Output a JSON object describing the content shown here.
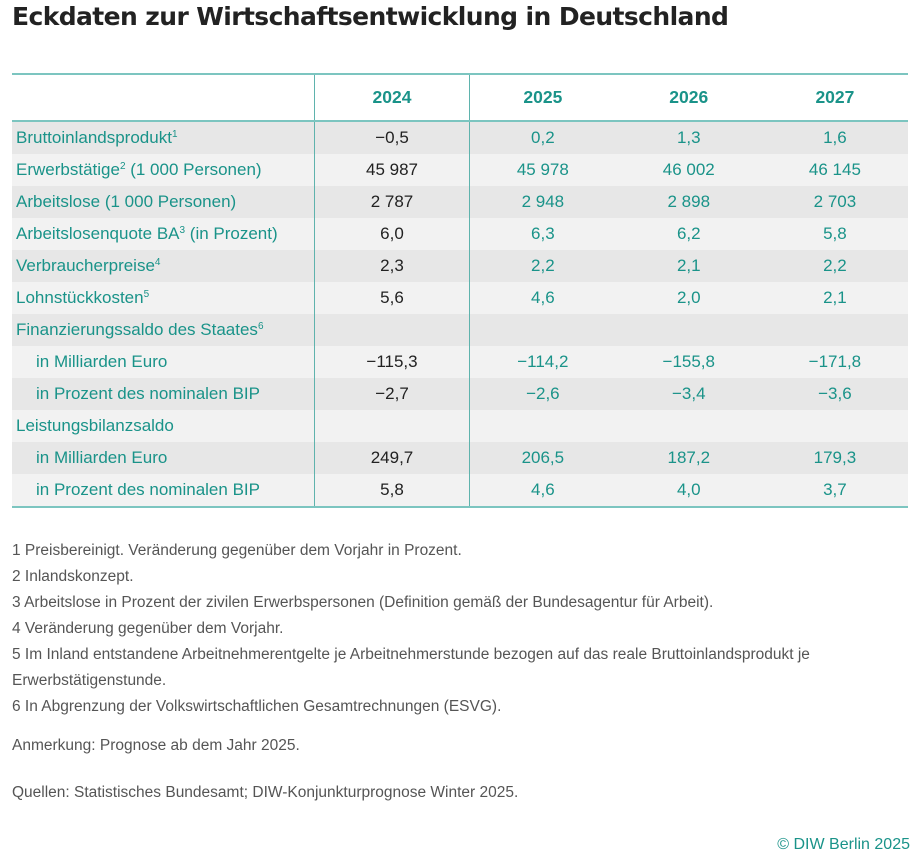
{
  "title": "Eckdaten zur Wirtschaftsentwicklung in Deutschland",
  "chart_data": {
    "type": "table",
    "title": "Eckdaten zur Wirtschaftsentwicklung in Deutschland",
    "columns": [
      "2024",
      "2025",
      "2026",
      "2027"
    ],
    "rows": [
      {
        "label": "Bruttoinlandsprodukt",
        "footnote": "1",
        "label_suffix": "",
        "indent": false,
        "values": [
          "−0,5",
          "0,2",
          "1,3",
          "1,6"
        ]
      },
      {
        "label": "Erwerbstätige",
        "footnote": "2",
        "label_suffix": " (1 000 Personen)",
        "indent": false,
        "values": [
          "45 987",
          "45 978",
          "46 002",
          "46 145"
        ]
      },
      {
        "label": "Arbeitslose (1 000 Personen)",
        "footnote": "",
        "label_suffix": "",
        "indent": false,
        "values": [
          "2 787",
          "2 948",
          "2 898",
          "2 703"
        ]
      },
      {
        "label": "Arbeitslosenquote BA",
        "footnote": "3",
        "label_suffix": " (in Prozent)",
        "indent": false,
        "values": [
          "6,0",
          "6,3",
          "6,2",
          "5,8"
        ]
      },
      {
        "label": "Verbraucherpreise",
        "footnote": "4",
        "label_suffix": "",
        "indent": false,
        "values": [
          "2,3",
          "2,2",
          "2,1",
          "2,2"
        ]
      },
      {
        "label": "Lohnstückkosten",
        "footnote": "5",
        "label_suffix": "",
        "indent": false,
        "values": [
          "5,6",
          "4,6",
          "2,0",
          "2,1"
        ]
      },
      {
        "label": "Finanzierungssaldo des Staates",
        "footnote": "6",
        "label_suffix": "",
        "indent": false,
        "values": [
          "",
          "",
          "",
          ""
        ]
      },
      {
        "label": "in Milliarden Euro",
        "footnote": "",
        "label_suffix": "",
        "indent": true,
        "values": [
          "−115,3",
          "−114,2",
          "−155,8",
          "−171,8"
        ]
      },
      {
        "label": "in Prozent des nominalen BIP",
        "footnote": "",
        "label_suffix": "",
        "indent": true,
        "values": [
          "−2,7",
          "−2,6",
          "−3,4",
          "−3,6"
        ]
      },
      {
        "label": "Leistungsbilanzsaldo",
        "footnote": "",
        "label_suffix": "",
        "indent": false,
        "values": [
          "",
          "",
          "",
          ""
        ]
      },
      {
        "label": "in Milliarden Euro",
        "footnote": "",
        "label_suffix": "",
        "indent": true,
        "values": [
          "249,7",
          "206,5",
          "187,2",
          "179,3"
        ]
      },
      {
        "label": "in Prozent des nominalen BIP",
        "footnote": "",
        "label_suffix": "",
        "indent": true,
        "values": [
          "5,8",
          "4,6",
          "4,0",
          "3,7"
        ]
      }
    ]
  },
  "footnotes": [
    "1  Preisbereinigt. Veränderung gegenüber dem Vorjahr in Prozent.",
    "2  Inlandskonzept.",
    "3  Arbeitslose in Prozent der zivilen Erwerbspersonen (Definition gemäß der Bundesagentur für Arbeit).",
    "4  Veränderung gegenüber dem Vorjahr.",
    "5  Im Inland entstandene Arbeitnehmerentgelte je Arbeitnehmerstunde bezogen auf das reale Bruttoinlandsprodukt je Erwerbstätigenstunde.",
    "6  In Abgrenzung der Volkswirtschaftlichen Gesamtrechnungen (ESVG)."
  ],
  "remark": "Anmerkung: Prognose ab dem Jahr 2025.",
  "sources": "Quellen: Statistisches Bundesamt; DIW-Konjunkturprognose Winter 2025.",
  "copyright": "© DIW Berlin 2025",
  "colors": {
    "accent": "#1a9389",
    "rule": "#7cc5c0",
    "row_dark": "#e7e7e7",
    "row_light": "#f2f2f2",
    "text": "#222222",
    "note_text": "#555555"
  }
}
